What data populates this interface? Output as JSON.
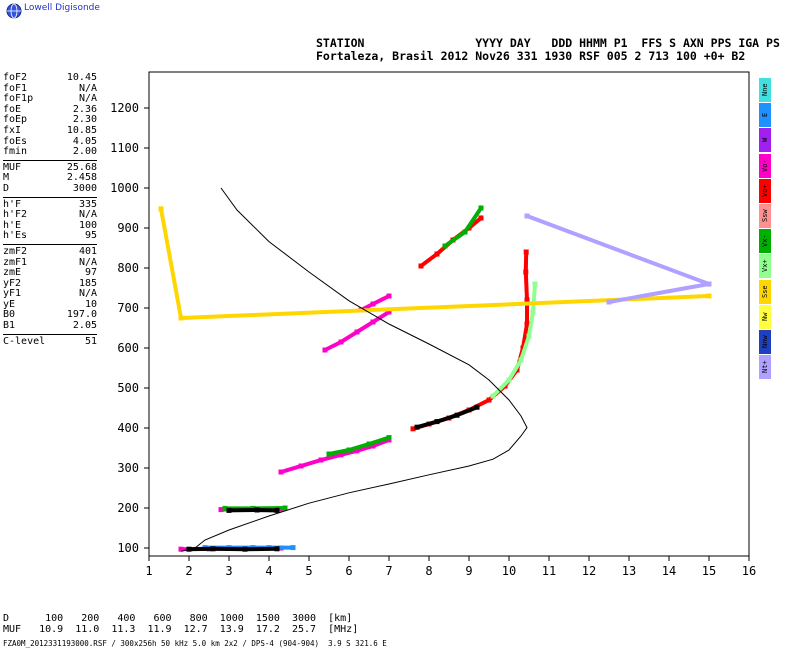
{
  "brand": {
    "logo_text": "Lowell Digisonde"
  },
  "header": {
    "line1": "STATION                YYYY DAY   DDD HHMM P1  FFS S AXN PPS IGA PS",
    "line2": "Fortaleza, Brasil 2012 Nov26 331 1930 RSF 005 2 713 100 +0+ B2"
  },
  "params": [
    {
      "label": "foF2",
      "value": "10.45"
    },
    {
      "label": "foF1",
      "value": "N/A"
    },
    {
      "label": "foF1p",
      "value": "N/A"
    },
    {
      "label": "foE",
      "value": "2.36"
    },
    {
      "label": "foEp",
      "value": "2.30"
    },
    {
      "label": "fxI",
      "value": "10.85"
    },
    {
      "label": "foEs",
      "value": "4.05"
    },
    {
      "label": "fmin",
      "value": "2.00"
    },
    {
      "sep": true
    },
    {
      "label": "MUF",
      "value": "25.68"
    },
    {
      "label": "M",
      "value": "2.458"
    },
    {
      "label": "D",
      "value": "3000"
    },
    {
      "sep": true
    },
    {
      "label": "h'F",
      "value": "335"
    },
    {
      "label": "h'F2",
      "value": "N/A"
    },
    {
      "label": "h'E",
      "value": "100"
    },
    {
      "label": "h'Es",
      "value": "95"
    },
    {
      "sep": true
    },
    {
      "label": "zmF2",
      "value": "401"
    },
    {
      "label": "zmF1",
      "value": "N/A"
    },
    {
      "label": "zmE",
      "value": "97"
    },
    {
      "label": "yF2",
      "value": "185"
    },
    {
      "label": "yF1",
      "value": "N/A"
    },
    {
      "label": "yE",
      "value": "10"
    },
    {
      "label": "B0",
      "value": "197.0"
    },
    {
      "label": "B1",
      "value": "2.05"
    },
    {
      "sep": true
    },
    {
      "label": "C-level",
      "value": "51"
    }
  ],
  "muf_table": {
    "d_label": "D",
    "d_values": [
      "100",
      "200",
      "400",
      "600",
      "800",
      "1000",
      "1500",
      "3000"
    ],
    "d_unit": "[km]",
    "muf_label": "MUF",
    "muf_values": [
      "10.9",
      "11.0",
      "11.3",
      "11.9",
      "12.7",
      "13.9",
      "17.2",
      "25.7"
    ],
    "muf_unit": "[MHz]"
  },
  "footer": "FZA0M_2012331193000.RSF / 300x256h 50 kHz 5.0 km 2x2 / DPS-4 (904-904)  3.9 S 321.6 E",
  "legend": [
    {
      "label": "Nne",
      "color": "#40e0e0"
    },
    {
      "label": "E",
      "color": "#1e90ff"
    },
    {
      "label": "W",
      "color": "#a020f0"
    },
    {
      "label": "Vo-",
      "color": "#ff00c8"
    },
    {
      "label": "Vo+",
      "color": "#ff0000"
    },
    {
      "label": "Ssw",
      "color": "#ff9090"
    },
    {
      "label": "Vx-",
      "color": "#00b000"
    },
    {
      "label": "Vx+",
      "color": "#90ff90"
    },
    {
      "label": "Sse",
      "color": "#ffd700"
    },
    {
      "label": "Nw",
      "color": "#ffff40"
    },
    {
      "label": "Nnw",
      "color": "#1e40c0"
    },
    {
      "label": "Nt+",
      "color": "#b0a0ff"
    }
  ],
  "chart_data": {
    "type": "scatter",
    "title": "",
    "xlabel": "",
    "ylabel": "",
    "xlim": [
      1,
      16
    ],
    "ylim": [
      80,
      1290
    ],
    "x_ticks": [
      1,
      2,
      3,
      4,
      5,
      6,
      7,
      8,
      9,
      10,
      11,
      12,
      13,
      14,
      15,
      16
    ],
    "y_ticks": [
      100,
      200,
      300,
      400,
      500,
      600,
      700,
      800,
      900,
      1000,
      1100,
      1200
    ],
    "profile": {
      "name": "",
      "points": [
        [
          1.8,
          92
        ],
        [
          2.15,
          100
        ],
        [
          2.4,
          120
        ],
        [
          3,
          145
        ],
        [
          4,
          180
        ],
        [
          5,
          212
        ],
        [
          6,
          238
        ],
        [
          7,
          260
        ],
        [
          8,
          283
        ],
        [
          9,
          305
        ],
        [
          9.6,
          322
        ],
        [
          10,
          345
        ],
        [
          10.3,
          380
        ],
        [
          10.45,
          401
        ],
        [
          10.3,
          430
        ],
        [
          10,
          470
        ],
        [
          9.5,
          520
        ],
        [
          9,
          558
        ],
        [
          8,
          610
        ],
        [
          7,
          660
        ],
        [
          6,
          718
        ],
        [
          5,
          790
        ],
        [
          4,
          866
        ],
        [
          3.2,
          945
        ],
        [
          2.8,
          1000
        ]
      ]
    },
    "traces": [
      {
        "name": "E layer",
        "color": "#ff00c8",
        "points": [
          [
            1.8,
            97
          ],
          [
            2.5,
            98
          ],
          [
            3.2,
            99
          ],
          [
            3.8,
            99
          ],
          [
            4.3,
            100
          ]
        ]
      },
      {
        "name": "E layer B",
        "color": "#1e90ff",
        "points": [
          [
            2.4,
            101
          ],
          [
            3.0,
            101
          ],
          [
            3.6,
            101
          ],
          [
            4.0,
            101
          ],
          [
            4.6,
            101
          ]
        ]
      },
      {
        "name": "E layer C",
        "color": "#000000",
        "points": [
          [
            2.0,
            97
          ],
          [
            2.6,
            98
          ],
          [
            3.4,
            97
          ],
          [
            4.2,
            98
          ]
        ]
      },
      {
        "name": "Es 2nd",
        "color": "#ff00c8",
        "points": [
          [
            2.8,
            196
          ],
          [
            3.3,
            197
          ],
          [
            3.8,
            196
          ],
          [
            4.3,
            197
          ]
        ]
      },
      {
        "name": "Es 2nd B",
        "color": "#00b000",
        "points": [
          [
            2.9,
            199
          ],
          [
            3.6,
            199
          ],
          [
            4.4,
            200
          ]
        ]
      },
      {
        "name": "Es 2nd C",
        "color": "#000000",
        "points": [
          [
            3.0,
            194
          ],
          [
            3.7,
            195
          ],
          [
            4.2,
            194
          ]
        ]
      },
      {
        "name": "F O mode",
        "color": "#ff00c8",
        "points": [
          [
            4.3,
            290
          ],
          [
            4.8,
            305
          ],
          [
            5.3,
            320
          ],
          [
            5.8,
            333
          ],
          [
            6.2,
            343
          ],
          [
            6.6,
            355
          ],
          [
            7.0,
            370
          ]
        ]
      },
      {
        "name": "F X mode",
        "color": "#00b000",
        "points": [
          [
            5.5,
            335
          ],
          [
            6.0,
            345
          ],
          [
            6.5,
            360
          ],
          [
            7.0,
            376
          ]
        ]
      },
      {
        "name": "F2 lower",
        "color": "#ff0000",
        "points": [
          [
            7.6,
            398
          ],
          [
            8.0,
            410
          ],
          [
            8.5,
            425
          ],
          [
            9.0,
            445
          ],
          [
            9.5,
            470
          ],
          [
            9.9,
            505
          ],
          [
            10.2,
            545
          ],
          [
            10.35,
            600
          ],
          [
            10.45,
            660
          ],
          [
            10.45,
            720
          ],
          [
            10.42,
            790
          ],
          [
            10.43,
            840
          ]
        ]
      },
      {
        "name": "F2 x",
        "color": "#000000",
        "points": [
          [
            7.7,
            402
          ],
          [
            8.2,
            416
          ],
          [
            8.7,
            432
          ],
          [
            9.2,
            452
          ]
        ]
      },
      {
        "name": "F2 X green",
        "color": "#90ff90",
        "points": [
          [
            9.6,
            480
          ],
          [
            10.0,
            520
          ],
          [
            10.3,
            570
          ],
          [
            10.5,
            630
          ],
          [
            10.6,
            690
          ],
          [
            10.65,
            760
          ]
        ]
      },
      {
        "name": "F multi",
        "color": "#ff00c8",
        "points": [
          [
            5.4,
            595
          ],
          [
            5.8,
            615
          ],
          [
            6.2,
            640
          ],
          [
            6.6,
            665
          ],
          [
            7.0,
            690
          ]
        ]
      },
      {
        "name": "F multi B",
        "color": "#ff00c8",
        "points": [
          [
            6.3,
            695
          ],
          [
            6.6,
            710
          ],
          [
            7.0,
            730
          ]
        ]
      },
      {
        "name": "F high",
        "color": "#ff0000",
        "points": [
          [
            7.8,
            805
          ],
          [
            8.2,
            835
          ],
          [
            8.6,
            870
          ],
          [
            9.0,
            900
          ],
          [
            9.3,
            925
          ]
        ]
      },
      {
        "name": "F high B",
        "color": "#00b000",
        "points": [
          [
            8.4,
            855
          ],
          [
            8.9,
            890
          ],
          [
            9.3,
            950
          ]
        ]
      },
      {
        "name": "scatter",
        "color": "#ffd700",
        "points": [
          [
            1.3,
            948
          ],
          [
            1.8,
            675
          ],
          [
            15.0,
            730
          ]
        ]
      },
      {
        "name": "scatter B",
        "color": "#b0a0ff",
        "points": [
          [
            12.5,
            715
          ],
          [
            15.0,
            760
          ],
          [
            10.45,
            930
          ]
        ]
      }
    ]
  }
}
